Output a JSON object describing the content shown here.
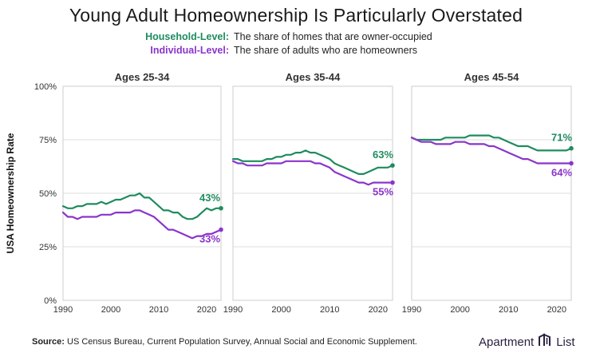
{
  "title": "Young Adult Homeownership Is Particularly Overstated",
  "legend": [
    {
      "key": "Household-Level:",
      "desc": "The share of homes that are owner-occupied",
      "color": "#1e8c5e"
    },
    {
      "key": "Individual-Level:",
      "desc": "The share of adults who are homeowners",
      "color": "#8b35c9"
    }
  ],
  "source": {
    "label": "Source:",
    "text": "US Census Bureau, Current Population Survey, Annual Social and Economic Supplement."
  },
  "brand": {
    "left": "Apartment",
    "right": "List",
    "icon": "apartment-list-logo-icon"
  },
  "colors": {
    "household": "#1e8c5e",
    "individual": "#8b35c9",
    "grid": "#dddddd",
    "panel_border": "#cccccc"
  },
  "chart_data": [
    {
      "type": "line",
      "title": "Ages 25-34",
      "ylabel": "USA Homeownership Rate",
      "xlim": [
        1990,
        2023
      ],
      "ylim": [
        0,
        100
      ],
      "xticks": [
        "1990",
        "2000",
        "2010",
        "2020"
      ],
      "yticks": [
        "0%",
        "25%",
        "50%",
        "75%",
        "100%"
      ],
      "grid": true,
      "x": [
        1990,
        1991,
        1992,
        1993,
        1994,
        1995,
        1996,
        1997,
        1998,
        1999,
        2000,
        2001,
        2002,
        2003,
        2004,
        2005,
        2006,
        2007,
        2008,
        2009,
        2010,
        2011,
        2012,
        2013,
        2014,
        2015,
        2016,
        2017,
        2018,
        2019,
        2020,
        2021,
        2022,
        2023
      ],
      "series": [
        {
          "name": "Household-Level",
          "end_label": "43%",
          "values": [
            44,
            43,
            43,
            44,
            44,
            45,
            45,
            45,
            46,
            45,
            46,
            47,
            47,
            48,
            49,
            49,
            50,
            48,
            48,
            46,
            44,
            42,
            42,
            41,
            41,
            39,
            38,
            38,
            39,
            41,
            43,
            42,
            43,
            43
          ]
        },
        {
          "name": "Individual-Level",
          "end_label": "33%",
          "values": [
            41,
            39,
            39,
            38,
            39,
            39,
            39,
            39,
            40,
            40,
            40,
            41,
            41,
            41,
            41,
            42,
            42,
            41,
            40,
            39,
            37,
            35,
            33,
            33,
            32,
            31,
            30,
            29,
            30,
            30,
            31,
            31,
            32,
            33
          ]
        }
      ]
    },
    {
      "type": "line",
      "title": "Ages 35-44",
      "xlim": [
        1990,
        2023
      ],
      "ylim": [
        0,
        100
      ],
      "xticks": [
        "1990",
        "2000",
        "2010",
        "2020"
      ],
      "grid": true,
      "x": [
        1990,
        1991,
        1992,
        1993,
        1994,
        1995,
        1996,
        1997,
        1998,
        1999,
        2000,
        2001,
        2002,
        2003,
        2004,
        2005,
        2006,
        2007,
        2008,
        2009,
        2010,
        2011,
        2012,
        2013,
        2014,
        2015,
        2016,
        2017,
        2018,
        2019,
        2020,
        2021,
        2022,
        2023
      ],
      "series": [
        {
          "name": "Household-Level",
          "end_label": "63%",
          "values": [
            66,
            66,
            65,
            65,
            65,
            65,
            65,
            66,
            66,
            67,
            67,
            68,
            68,
            69,
            69,
            70,
            69,
            69,
            68,
            67,
            66,
            64,
            63,
            62,
            61,
            60,
            59,
            59,
            60,
            61,
            62,
            62,
            62,
            63
          ]
        },
        {
          "name": "Individual-Level",
          "end_label": "55%",
          "values": [
            65,
            64,
            64,
            63,
            63,
            63,
            63,
            64,
            64,
            64,
            64,
            65,
            65,
            65,
            65,
            65,
            65,
            64,
            64,
            63,
            62,
            60,
            59,
            58,
            57,
            56,
            55,
            55,
            54,
            55,
            55,
            55,
            55,
            55
          ]
        }
      ]
    },
    {
      "type": "line",
      "title": "Ages 45-54",
      "xlim": [
        1990,
        2023
      ],
      "ylim": [
        0,
        100
      ],
      "xticks": [
        "1990",
        "2000",
        "2010",
        "2020"
      ],
      "grid": true,
      "x": [
        1990,
        1991,
        1992,
        1993,
        1994,
        1995,
        1996,
        1997,
        1998,
        1999,
        2000,
        2001,
        2002,
        2003,
        2004,
        2005,
        2006,
        2007,
        2008,
        2009,
        2010,
        2011,
        2012,
        2013,
        2014,
        2015,
        2016,
        2017,
        2018,
        2019,
        2020,
        2021,
        2022,
        2023
      ],
      "series": [
        {
          "name": "Household-Level",
          "end_label": "71%",
          "values": [
            76,
            75,
            75,
            75,
            75,
            75,
            75,
            76,
            76,
            76,
            76,
            76,
            77,
            77,
            77,
            77,
            77,
            76,
            76,
            75,
            74,
            73,
            72,
            72,
            72,
            71,
            70,
            70,
            70,
            70,
            70,
            70,
            70,
            71
          ]
        },
        {
          "name": "Individual-Level",
          "end_label": "64%",
          "values": [
            76,
            75,
            74,
            74,
            74,
            73,
            73,
            73,
            73,
            74,
            74,
            74,
            73,
            73,
            73,
            73,
            72,
            72,
            71,
            70,
            69,
            68,
            67,
            66,
            66,
            65,
            64,
            64,
            64,
            64,
            64,
            64,
            64,
            64
          ]
        }
      ]
    }
  ]
}
